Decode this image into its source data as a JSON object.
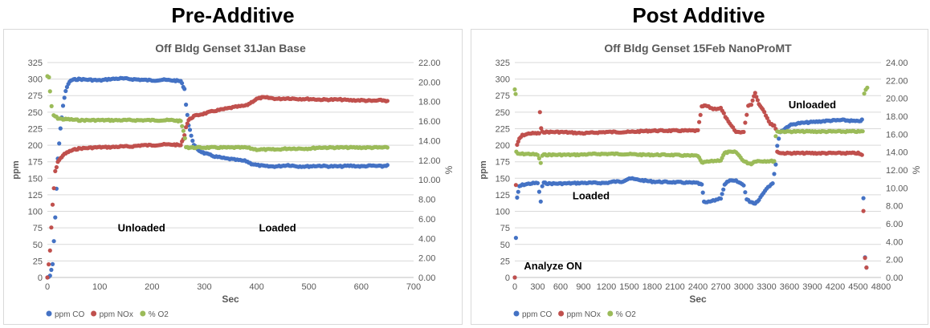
{
  "headings": {
    "left": "Pre-Additive",
    "right": "Post Additive"
  },
  "chart_data": [
    {
      "type": "scatter",
      "title": "Off Bldg Genset 31Jan Base",
      "xlabel": "Sec",
      "ylabel": "ppm",
      "y2label": "%",
      "xlim": [
        0,
        700
      ],
      "xticks": [
        0,
        100,
        200,
        300,
        400,
        500,
        600,
        700
      ],
      "ylim": [
        0,
        325
      ],
      "yticks": [
        0,
        25,
        50,
        75,
        100,
        125,
        150,
        175,
        200,
        225,
        250,
        275,
        300,
        325
      ],
      "y2lim": [
        0,
        22
      ],
      "y2ticks": [
        "0.00",
        "2.00",
        "4.00",
        "6.00",
        "8.00",
        "10.00",
        "12.00",
        "14.00",
        "16.00",
        "18.00",
        "20.00",
        "22.00"
      ],
      "grid": true,
      "legend": "bottom-left",
      "series": [
        {
          "name": "ppm CO",
          "color": "#4472c4",
          "axis": "left",
          "x": [
            0,
            5,
            10,
            15,
            20,
            25,
            30,
            35,
            40,
            45,
            50,
            60,
            80,
            100,
            120,
            140,
            160,
            180,
            200,
            220,
            240,
            255,
            262,
            265,
            270,
            280,
            290,
            300,
            320,
            340,
            360,
            380,
            390,
            400,
            420,
            440,
            460,
            480,
            500,
            520,
            540,
            560,
            580,
            600,
            620,
            640,
            650
          ],
          "y": [
            0,
            2,
            20,
            90,
            180,
            225,
            260,
            282,
            293,
            298,
            299,
            300,
            299,
            298,
            300,
            301,
            300,
            299,
            298,
            299,
            298,
            297,
            285,
            262,
            230,
            200,
            192,
            188,
            183,
            180,
            178,
            176,
            172,
            170,
            168,
            168,
            170,
            168,
            168,
            169,
            168,
            168,
            169,
            168,
            169,
            168,
            170
          ]
        },
        {
          "name": "ppm NOx",
          "color": "#c0504d",
          "axis": "left",
          "x": [
            0,
            5,
            10,
            15,
            20,
            25,
            30,
            40,
            50,
            60,
            80,
            100,
            120,
            140,
            160,
            180,
            200,
            220,
            240,
            255,
            262,
            265,
            270,
            280,
            300,
            320,
            340,
            360,
            380,
            390,
            400,
            410,
            420,
            440,
            460,
            480,
            500,
            520,
            540,
            560,
            580,
            600,
            620,
            640,
            650
          ],
          "y": [
            0,
            40,
            110,
            160,
            175,
            180,
            185,
            190,
            193,
            195,
            196,
            197,
            197,
            198,
            198,
            200,
            200,
            201,
            201,
            200,
            215,
            228,
            238,
            244,
            248,
            252,
            255,
            258,
            260,
            265,
            270,
            272,
            272,
            270,
            271,
            270,
            270,
            269,
            269,
            269,
            268,
            268,
            267,
            268,
            267
          ]
        },
        {
          "name": "% O2",
          "color": "#9bbb59",
          "axis": "right",
          "x": [
            0,
            3,
            5,
            8,
            12,
            20,
            30,
            40,
            60,
            80,
            100,
            120,
            140,
            160,
            180,
            200,
            220,
            240,
            255,
            260,
            263,
            265,
            270,
            280,
            300,
            320,
            340,
            360,
            380,
            400,
            420,
            440,
            460,
            480,
            500,
            520,
            540,
            560,
            580,
            600,
            620,
            640,
            650
          ],
          "y": [
            20.6,
            20.5,
            19.0,
            17.5,
            16.6,
            16.3,
            16.2,
            16.2,
            16.1,
            16.1,
            16.1,
            16.1,
            16.1,
            16.1,
            16.1,
            16.1,
            16.1,
            16.1,
            16.0,
            15.0,
            14.2,
            13.4,
            13.3,
            13.3,
            13.3,
            13.3,
            13.3,
            13.3,
            13.3,
            13.1,
            13.1,
            13.1,
            13.2,
            13.2,
            13.2,
            13.3,
            13.3,
            13.3,
            13.3,
            13.3,
            13.3,
            13.3,
            13.3
          ]
        }
      ],
      "annotations": [
        {
          "text": "Unloaded",
          "x": 180,
          "y": 70
        },
        {
          "text": "Loaded",
          "x": 440,
          "y": 70
        }
      ]
    },
    {
      "type": "scatter",
      "title": "Off Bldg Genset 15Feb NanoProMT",
      "xlabel": "Sec",
      "ylabel": "ppm",
      "y2label": "%",
      "xlim": [
        0,
        4800
      ],
      "xticks": [
        0,
        300,
        600,
        900,
        1200,
        1500,
        1800,
        2100,
        2400,
        2700,
        3000,
        3300,
        3600,
        3900,
        4200,
        4500,
        4800
      ],
      "ylim": [
        0,
        325
      ],
      "yticks": [
        0,
        25,
        50,
        75,
        100,
        125,
        150,
        175,
        200,
        225,
        250,
        275,
        300,
        325
      ],
      "y2lim": [
        0,
        24
      ],
      "y2ticks": [
        "0.00",
        "2.00",
        "4.00",
        "6.00",
        "8.00",
        "10.00",
        "12.00",
        "14.00",
        "16.00",
        "18.00",
        "20.00",
        "22.00",
        "24.00"
      ],
      "grid": true,
      "legend": "bottom-left",
      "series": [
        {
          "name": "ppm CO",
          "color": "#4472c4",
          "axis": "left",
          "x": [
            0,
            15,
            30,
            60,
            100,
            200,
            300,
            340,
            360,
            380,
            450,
            600,
            900,
            1200,
            1300,
            1400,
            1500,
            1600,
            1800,
            2100,
            2400,
            2450,
            2480,
            2500,
            2600,
            2700,
            2750,
            2800,
            2900,
            3000,
            3040,
            3080,
            3150,
            3200,
            3300,
            3380,
            3420,
            3440,
            3480,
            3600,
            3700,
            3900,
            4100,
            4300,
            4500,
            4550,
            4570,
            4590,
            4610
          ],
          "y": [
            0,
            60,
            120,
            138,
            140,
            142,
            143,
            115,
            138,
            143,
            142,
            142,
            143,
            143,
            145,
            145,
            150,
            148,
            145,
            144,
            143,
            140,
            115,
            113,
            116,
            120,
            140,
            146,
            146,
            140,
            118,
            115,
            112,
            118,
            135,
            143,
            170,
            200,
            220,
            230,
            233,
            235,
            237,
            238,
            236,
            238,
            120,
            30,
            15
          ]
        },
        {
          "name": "ppm NOx",
          "color": "#c0504d",
          "axis": "left",
          "x": [
            0,
            15,
            30,
            60,
            100,
            200,
            320,
            330,
            345,
            360,
            380,
            450,
            600,
            900,
            1200,
            1500,
            1800,
            2100,
            2400,
            2450,
            2500,
            2600,
            2700,
            2800,
            2900,
            3000,
            3060,
            3100,
            3150,
            3200,
            3250,
            3350,
            3400,
            3420,
            3440,
            3500,
            3700,
            3900,
            4100,
            4300,
            4500,
            4550,
            4570,
            4590,
            4610
          ],
          "y": [
            0,
            140,
            200,
            210,
            215,
            218,
            218,
            250,
            225,
            220,
            220,
            220,
            220,
            218,
            220,
            220,
            222,
            222,
            222,
            258,
            260,
            255,
            256,
            235,
            220,
            220,
            260,
            262,
            280,
            262,
            255,
            232,
            230,
            225,
            190,
            188,
            188,
            188,
            188,
            188,
            188,
            185,
            100,
            30,
            15
          ]
        },
        {
          "name": "% O2",
          "color": "#9bbb59",
          "axis": "right",
          "x": [
            0,
            10,
            20,
            40,
            100,
            200,
            300,
            340,
            360,
            380,
            500,
            800,
            1100,
            1400,
            1700,
            2000,
            2300,
            2400,
            2450,
            2500,
            2600,
            2700,
            2750,
            2800,
            2900,
            3000,
            3050,
            3100,
            3150,
            3200,
            3350,
            3400,
            3420,
            3440,
            3500,
            3700,
            3900,
            4100,
            4300,
            4500,
            4560,
            4580,
            4600,
            4620
          ],
          "y": [
            21.0,
            20.5,
            14.0,
            13.8,
            13.8,
            13.8,
            13.7,
            12.8,
            13.6,
            13.7,
            13.7,
            13.7,
            13.8,
            13.8,
            13.7,
            13.7,
            13.6,
            13.6,
            12.8,
            12.9,
            13.0,
            13.1,
            13.9,
            14.0,
            14.0,
            13.0,
            12.8,
            12.7,
            13.0,
            13.0,
            13.0,
            13.0,
            15.8,
            16.3,
            16.3,
            16.3,
            16.3,
            16.3,
            16.3,
            16.3,
            16.3,
            20.5,
            21.0,
            21.2
          ]
        }
      ],
      "annotations": [
        {
          "text": "Unloaded",
          "x": 3900,
          "y": 256
        },
        {
          "text": "Loaded",
          "x": 1000,
          "y": 118
        },
        {
          "text": "Analyze ON",
          "x": 500,
          "y": 12
        }
      ]
    }
  ]
}
